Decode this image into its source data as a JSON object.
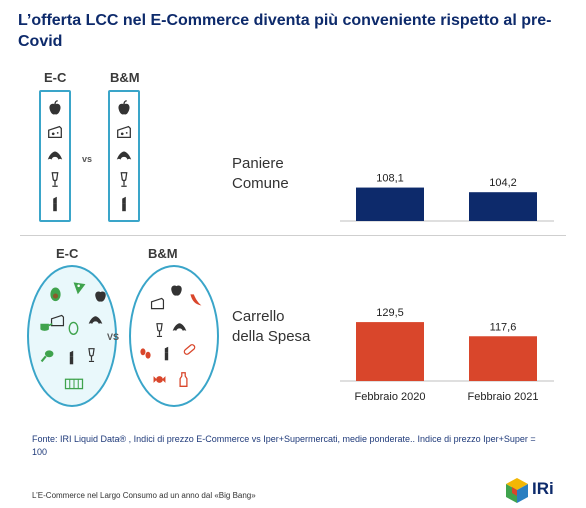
{
  "title": "L’offerta LCC nel E-Commerce diventa più conveniente rispetto al pre-Covid",
  "top_section": {
    "left_label": "E-C",
    "right_label": "B&M",
    "vs": "vs",
    "icons": [
      "apple-icon",
      "cheese-icon",
      "croissant-icon",
      "wine-glass-icon",
      "lipstick-icon"
    ]
  },
  "bottom_section": {
    "left_label": "E-C",
    "right_label": "B&M",
    "vs": "VS"
  },
  "row_labels": {
    "paniere": [
      "Paniere",
      "Comune"
    ],
    "carrello": [
      "Carrello",
      "della Spesa"
    ]
  },
  "colors": {
    "title": "#0d2a6b",
    "paniere_bar": "#0d2a6b",
    "carrello_bar": "#d9462b",
    "border": "#3aa5c9"
  },
  "chart_data": [
    {
      "type": "bar",
      "categories": [
        "Febbraio 2020",
        "Febbraio 2021"
      ],
      "values": [
        108.1,
        104.2
      ],
      "value_labels": [
        "108,1",
        "104,2"
      ],
      "color": "#0d2a6b"
    },
    {
      "type": "bar",
      "categories": [
        "Febbraio 2020",
        "Febbraio 2021"
      ],
      "values": [
        129.5,
        117.6
      ],
      "value_labels": [
        "129,5",
        "117,6"
      ],
      "color": "#d9462b"
    }
  ],
  "footer": {
    "source": "Fonte: IRI Liquid Data® , Indici di prezzo E-Commerce vs Iper+Supermercati, medie ponderate.. Indice di prezzo Iper+Super = 100",
    "note": "L’E-Commerce nel Largo Consumo ad un anno dal «Big Bang»",
    "logo_text": "IRi"
  }
}
